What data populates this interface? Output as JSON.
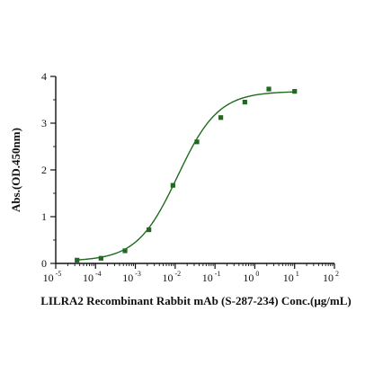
{
  "chart_data": {
    "type": "scatter",
    "title": "",
    "xlabel": "LILRA2 Recombinant Rabbit mAb (S-287-234)  Conc.(µg/mL)",
    "ylabel": "Abs.(OD.450nm)",
    "x_scale": "log",
    "xlim": [
      1e-05,
      100
    ],
    "ylim": [
      0,
      4
    ],
    "grid": false,
    "legend": "none",
    "x_ticks": [
      {
        "base": "10",
        "exp": "-5",
        "value": 1e-05
      },
      {
        "base": "10",
        "exp": "-4",
        "value": 0.0001
      },
      {
        "base": "10",
        "exp": "-3",
        "value": 0.001
      },
      {
        "base": "10",
        "exp": "-2",
        "value": 0.01
      },
      {
        "base": "10",
        "exp": "-1",
        "value": 0.1
      },
      {
        "base": "10",
        "exp": "0",
        "value": 1
      },
      {
        "base": "10",
        "exp": "1",
        "value": 10
      },
      {
        "base": "10",
        "exp": "2",
        "value": 100
      }
    ],
    "y_ticks": [
      {
        "label": "0",
        "value": 0
      },
      {
        "label": "1",
        "value": 1
      },
      {
        "label": "2",
        "value": 2
      },
      {
        "label": "3",
        "value": 3
      },
      {
        "label": "4",
        "value": 4
      }
    ],
    "series": [
      {
        "marker": "square",
        "color": "#1e6b1e",
        "x": [
          3.43e-05,
          0.000137,
          0.000549,
          0.00219,
          0.00878,
          0.0351,
          0.14,
          0.562,
          2.25,
          10
        ],
        "y": [
          0.07,
          0.11,
          0.27,
          0.72,
          1.67,
          2.6,
          3.12,
          3.45,
          3.73,
          3.68
        ]
      }
    ],
    "fit_curve": {
      "color": "#1e6b1e",
      "model": "4PL",
      "bottom": 0.05,
      "top": 3.68,
      "ec50": 0.0115,
      "hill": 0.85
    }
  }
}
